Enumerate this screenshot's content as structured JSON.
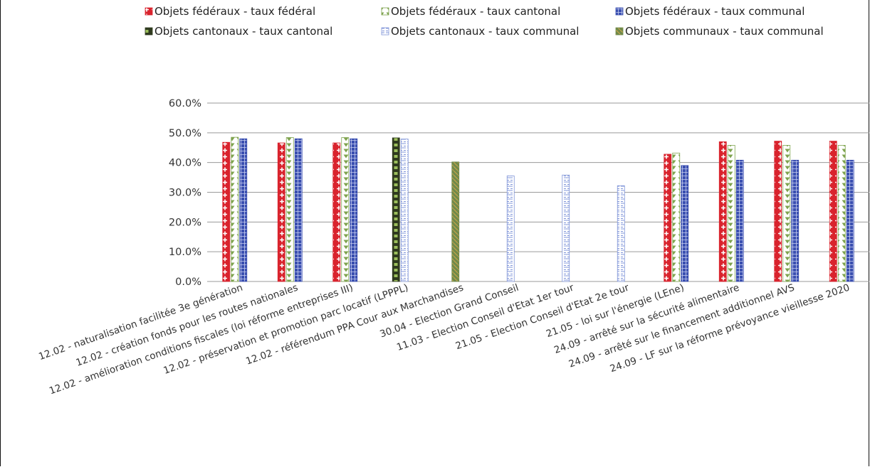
{
  "chart_data": {
    "type": "bar",
    "title": "",
    "xlabel": "",
    "ylabel": "",
    "ylim": [
      0,
      60
    ],
    "yticks": [
      "0.0%",
      "10.0%",
      "20.0%",
      "30.0%",
      "40.0%",
      "50.0%",
      "60.0%"
    ],
    "grid": true,
    "legend_position": "top",
    "categories": [
      "12.02 - naturalisation facilitée 3e génération",
      "12.02 - création fonds pour les routes nationales",
      "12.02 - amélioration conditions fiscales (loi réforme entreprises III)",
      "12.02 - préservation et promotion parc locatif (LPPPL)",
      "12.02 - référendum PPA Cour aux Marchandises",
      "30.04 - Election Grand Conseil",
      "11.03 - Election Conseil d'Etat 1er tour",
      "21.05 - Election Conseil d'Etat 2e tour",
      "21.05 - loi sur l'énergie (LEne)",
      "24.09 - arrêté sur la sécurité alimentaire",
      "24.09 - arrêté sur le financement additionnel AVS",
      "24.09 - LF sur la réforme prévoyance vieillesse 2020"
    ],
    "series": [
      {
        "name": "Objets fédéraux - taux fédéral",
        "color": "#d9232d",
        "pattern": "cross",
        "values": [
          46.8,
          46.6,
          46.6,
          null,
          null,
          null,
          null,
          null,
          42.8,
          47.0,
          47.2,
          47.2
        ]
      },
      {
        "name": "Objets fédéraux - taux cantonal",
        "color": "#7ea34e",
        "pattern": "triangle",
        "values": [
          48.5,
          48.4,
          48.4,
          null,
          null,
          null,
          null,
          null,
          43.2,
          45.8,
          45.8,
          45.8
        ]
      },
      {
        "name": "Objets fédéraux - taux communal",
        "color": "#3a4fb0",
        "pattern": "grid",
        "values": [
          48.0,
          48.0,
          48.0,
          null,
          null,
          null,
          null,
          null,
          39.0,
          40.8,
          40.8,
          40.8
        ]
      },
      {
        "name": "Objets cantonaux - taux cantonal",
        "color": "#2f3a1f",
        "pattern": "dark",
        "values": [
          null,
          null,
          null,
          48.3,
          null,
          null,
          null,
          null,
          null,
          null,
          null,
          null
        ]
      },
      {
        "name": "Objets cantonaux - taux communal",
        "color": "#7f94d8",
        "pattern": "light",
        "values": [
          null,
          null,
          null,
          47.9,
          null,
          35.5,
          35.8,
          32.2,
          null,
          null,
          null,
          null
        ]
      },
      {
        "name": "Objets communaux - taux communal",
        "color": "#6f8a4a",
        "pattern": "olive",
        "values": [
          null,
          null,
          null,
          null,
          40.2,
          null,
          null,
          null,
          null,
          null,
          null,
          null
        ]
      }
    ]
  }
}
